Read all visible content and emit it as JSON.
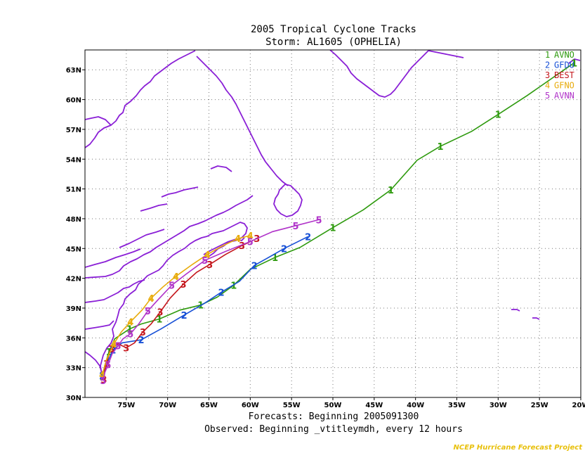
{
  "chart_data": {
    "type": "line",
    "title": "2005 Tropical Cyclone Tracks",
    "subtitle": "Storm: AL1605 (OPHELIA)",
    "footer_line1": "Forecasts: Beginning 2005091300",
    "footer_line2": "Observed: Beginning _vtitleymdh, every 12 hours",
    "credit": "NCEP Hurricane Forecast Project",
    "xlim": [
      -80,
      -20
    ],
    "ylim": [
      30,
      65
    ],
    "x_ticks": [
      {
        "value": -75,
        "label": "75W"
      },
      {
        "value": -70,
        "label": "70W"
      },
      {
        "value": -65,
        "label": "65W"
      },
      {
        "value": -60,
        "label": "60W"
      },
      {
        "value": -55,
        "label": "55W"
      },
      {
        "value": -50,
        "label": "50W"
      },
      {
        "value": -45,
        "label": "45W"
      },
      {
        "value": -40,
        "label": "40W"
      },
      {
        "value": -35,
        "label": "35W"
      },
      {
        "value": -30,
        "label": "30W"
      },
      {
        "value": -25,
        "label": "25W"
      },
      {
        "value": -20,
        "label": "20W"
      }
    ],
    "y_ticks": [
      {
        "value": 30,
        "label": "30N"
      },
      {
        "value": 33,
        "label": "33N"
      },
      {
        "value": 36,
        "label": "36N"
      },
      {
        "value": 39,
        "label": "39N"
      },
      {
        "value": 42,
        "label": "42N"
      },
      {
        "value": 45,
        "label": "45N"
      },
      {
        "value": 48,
        "label": "48N"
      },
      {
        "value": 51,
        "label": "51N"
      },
      {
        "value": 54,
        "label": "54N"
      },
      {
        "value": 57,
        "label": "57N"
      },
      {
        "value": 60,
        "label": "60N"
      },
      {
        "value": 63,
        "label": "63N"
      }
    ],
    "grid": true,
    "legend_position": "top-right",
    "series": [
      {
        "id": "1",
        "name": "AVNO",
        "color": "#2e9a0e",
        "points": [
          [
            -77.9,
            32.1
          ],
          [
            -77.6,
            33.2
          ],
          [
            -77.1,
            34.6
          ],
          [
            -76.4,
            35.9
          ],
          [
            -74.6,
            36.9
          ],
          [
            -73.2,
            37.4
          ],
          [
            -71.0,
            37.9
          ],
          [
            -68.5,
            38.8
          ],
          [
            -66.0,
            39.3
          ],
          [
            -64.0,
            40.1
          ],
          [
            -62.0,
            41.3
          ],
          [
            -60.0,
            42.9
          ],
          [
            -57.0,
            44.1
          ],
          [
            -54.0,
            45.1
          ],
          [
            -50.0,
            47.1
          ],
          [
            -46.3,
            48.9
          ],
          [
            -43.0,
            50.9
          ],
          [
            -39.8,
            53.9
          ],
          [
            -37.0,
            55.3
          ],
          [
            -33.2,
            56.8
          ],
          [
            -30.0,
            58.5
          ],
          [
            -26.5,
            60.4
          ],
          [
            -20.8,
            63.7
          ]
        ]
      },
      {
        "id": "2",
        "name": "GFDU",
        "color": "#1750d6",
        "points": [
          [
            -77.9,
            32.2
          ],
          [
            -77.3,
            33.5
          ],
          [
            -76.6,
            34.8
          ],
          [
            -75.5,
            35.5
          ],
          [
            -73.2,
            35.8
          ],
          [
            -70.8,
            36.9
          ],
          [
            -68.0,
            38.3
          ],
          [
            -65.5,
            39.5
          ],
          [
            -63.5,
            40.6
          ],
          [
            -61.3,
            41.7
          ],
          [
            -59.5,
            43.3
          ],
          [
            -58.0,
            44.0
          ],
          [
            -55.9,
            45.0
          ],
          [
            -53.0,
            46.2
          ]
        ]
      },
      {
        "id": "3",
        "name": "BEST",
        "color": "#c4161c",
        "points": [
          [
            -77.7,
            31.8
          ],
          [
            -77.6,
            32.7
          ],
          [
            -77.4,
            33.4
          ],
          [
            -77.1,
            34.3
          ],
          [
            -76.8,
            34.9
          ],
          [
            -76.0,
            35.4
          ],
          [
            -75.0,
            35.0
          ],
          [
            -74.0,
            35.5
          ],
          [
            -73.0,
            36.6
          ],
          [
            -72.0,
            37.4
          ],
          [
            -70.9,
            38.6
          ],
          [
            -69.7,
            40.0
          ],
          [
            -68.1,
            41.4
          ],
          [
            -66.5,
            42.6
          ],
          [
            -64.9,
            43.4
          ],
          [
            -63.0,
            44.4
          ],
          [
            -61.0,
            45.3
          ],
          [
            -59.2,
            46.0
          ]
        ]
      },
      {
        "id": "4",
        "name": "GFNO",
        "color": "#e8ac0c",
        "points": [
          [
            -77.9,
            32.3
          ],
          [
            -77.4,
            33.8
          ],
          [
            -76.5,
            35.4
          ],
          [
            -75.6,
            36.6
          ],
          [
            -74.5,
            37.6
          ],
          [
            -73.1,
            38.8
          ],
          [
            -72.0,
            40.0
          ],
          [
            -70.6,
            41.1
          ],
          [
            -69.0,
            42.2
          ],
          [
            -67.0,
            43.4
          ],
          [
            -65.2,
            44.4
          ],
          [
            -63.5,
            45.2
          ],
          [
            -61.5,
            46.0
          ],
          [
            -60.0,
            46.3
          ]
        ]
      },
      {
        "id": "5",
        "name": "AVNN",
        "color": "#b033c9",
        "points": [
          [
            -77.8,
            31.7
          ],
          [
            -77.6,
            32.5
          ],
          [
            -77.2,
            33.3
          ],
          [
            -76.7,
            34.4
          ],
          [
            -76.0,
            35.2
          ],
          [
            -75.4,
            35.9
          ],
          [
            -74.5,
            36.4
          ],
          [
            -73.5,
            37.4
          ],
          [
            -72.4,
            38.7
          ],
          [
            -71.2,
            39.8
          ],
          [
            -69.5,
            41.3
          ],
          [
            -67.8,
            42.4
          ],
          [
            -65.5,
            43.8
          ],
          [
            -63.0,
            44.7
          ],
          [
            -60.0,
            45.7
          ],
          [
            -57.3,
            46.7
          ],
          [
            -54.5,
            47.3
          ],
          [
            -51.7,
            47.9
          ]
        ]
      }
    ]
  }
}
